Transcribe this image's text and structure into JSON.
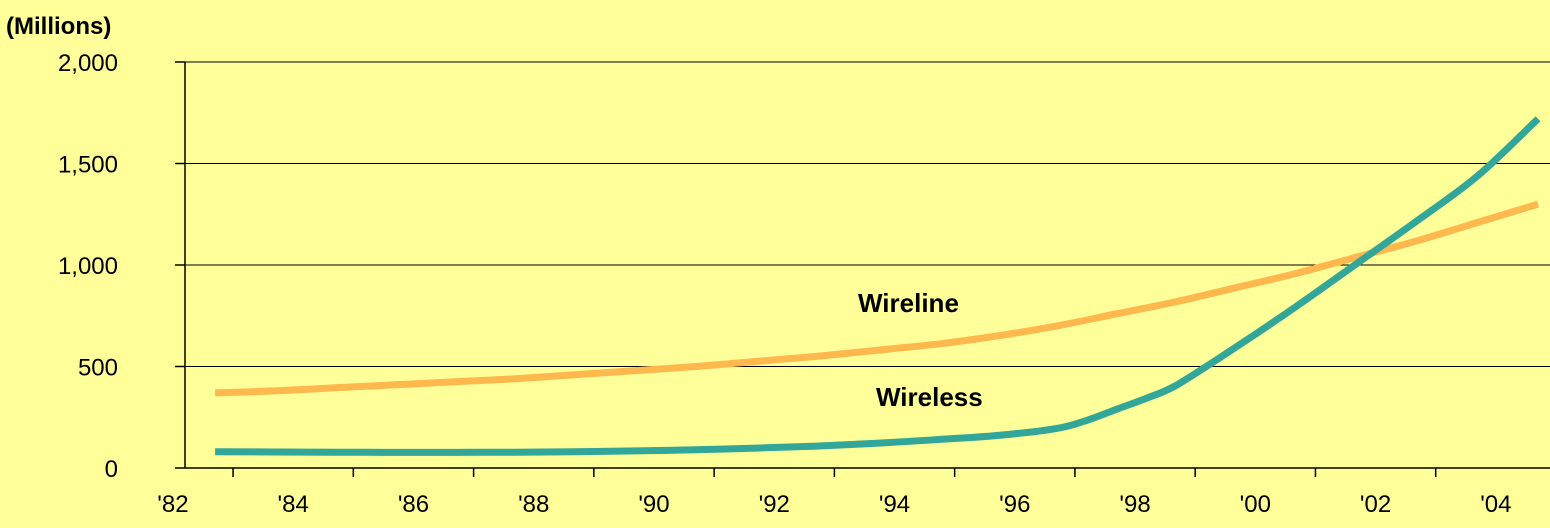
{
  "chart_data": {
    "type": "line",
    "unit_label": "(Millions)",
    "xlabel": "",
    "ylabel": "",
    "ylim": [
      0,
      2000
    ],
    "xlim": [
      1982,
      2005
    ],
    "y_ticks": [
      0,
      500,
      1000,
      1500,
      2000
    ],
    "y_tick_labels": [
      "0",
      "500",
      "1,000",
      "1,500",
      "2,000"
    ],
    "x_ticks": [
      1982,
      1984,
      1986,
      1988,
      1990,
      1992,
      1994,
      1996,
      1998,
      2000,
      2002,
      2004
    ],
    "x_tick_labels": [
      "'82",
      "'84",
      "'86",
      "'88",
      "'90",
      "'92",
      "'94",
      "'96",
      "'98",
      "'00",
      "'02",
      "'04"
    ],
    "grid": true,
    "legend": "none",
    "series": [
      {
        "name": "Wireline",
        "color": "#FFB84D",
        "points": [
          [
            1983,
            370
          ],
          [
            1984,
            380
          ],
          [
            1985,
            395
          ],
          [
            1986,
            410
          ],
          [
            1987,
            425
          ],
          [
            1988,
            440
          ],
          [
            1989,
            460
          ],
          [
            1990,
            480
          ],
          [
            1991,
            500
          ],
          [
            1992,
            525
          ],
          [
            1993,
            550
          ],
          [
            1994,
            580
          ],
          [
            1995,
            610
          ],
          [
            1996,
            650
          ],
          [
            1997,
            700
          ],
          [
            1998,
            760
          ],
          [
            1999,
            820
          ],
          [
            2000,
            890
          ],
          [
            2001,
            960
          ],
          [
            2002,
            1040
          ],
          [
            2003,
            1120
          ],
          [
            2004,
            1210
          ],
          [
            2005,
            1300
          ]
        ]
      },
      {
        "name": "Wireless",
        "color": "#33A69A",
        "points": [
          [
            1983,
            80
          ],
          [
            1984,
            79
          ],
          [
            1985,
            78
          ],
          [
            1986,
            77
          ],
          [
            1987,
            77
          ],
          [
            1988,
            78
          ],
          [
            1989,
            80
          ],
          [
            1990,
            84
          ],
          [
            1991,
            90
          ],
          [
            1992,
            98
          ],
          [
            1993,
            108
          ],
          [
            1994,
            122
          ],
          [
            1995,
            140
          ],
          [
            1996,
            160
          ],
          [
            1997,
            195
          ],
          [
            1997.5,
            235
          ],
          [
            1998,
            290
          ],
          [
            1998.5,
            345
          ],
          [
            1999,
            410
          ],
          [
            2000,
            600
          ],
          [
            2001,
            800
          ],
          [
            2002,
            1010
          ],
          [
            2003,
            1220
          ],
          [
            2004,
            1440
          ],
          [
            2005,
            1720
          ]
        ]
      }
    ]
  }
}
